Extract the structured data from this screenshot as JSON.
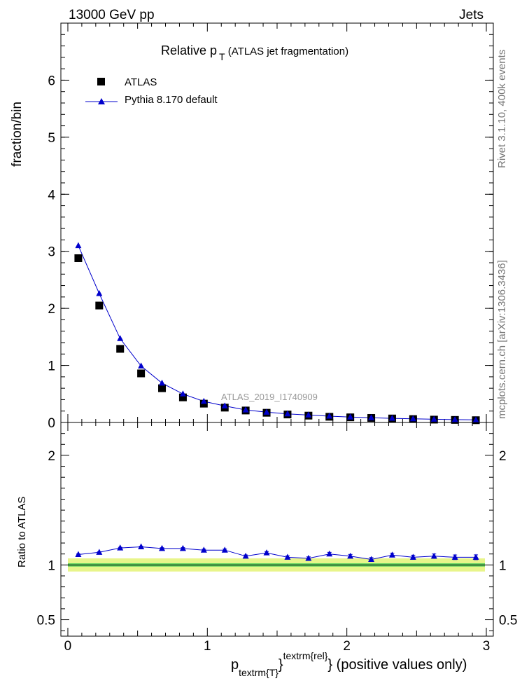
{
  "header": {
    "left": "13000 GeV pp",
    "right": "Jets"
  },
  "side": {
    "top": "Rivet 3.1.10,  400k events",
    "bottom": "mcplots.cern.ch [arXiv:1306.3436]"
  },
  "colors": {
    "data": "#000000",
    "mc": "#0000cc",
    "band_outer": "#e8f58a",
    "band_inner": "#5fd35f"
  },
  "chart_data": [
    {
      "type": "scatter",
      "title_main": "Relative p",
      "title_sub": "T",
      "title_rest": " (ATLAS jet fragmentation)",
      "watermark": "ATLAS_2019_I1740909",
      "ylabel": "fraction/bin",
      "xlim": [
        -0.05,
        3.05
      ],
      "ylim": [
        0,
        7
      ],
      "yticks": [
        0,
        1,
        2,
        3,
        4,
        5,
        6
      ],
      "legend": {
        "placement": "top-left"
      },
      "series": [
        {
          "name": "ATLAS",
          "x": [
            0.075,
            0.225,
            0.375,
            0.525,
            0.675,
            0.825,
            0.975,
            1.125,
            1.275,
            1.425,
            1.575,
            1.725,
            1.875,
            2.025,
            2.175,
            2.325,
            2.475,
            2.625,
            2.775,
            2.925
          ],
          "y": [
            2.88,
            2.05,
            1.29,
            0.86,
            0.6,
            0.44,
            0.33,
            0.26,
            0.21,
            0.17,
            0.14,
            0.12,
            0.1,
            0.09,
            0.08,
            0.07,
            0.06,
            0.05,
            0.045,
            0.04
          ]
        },
        {
          "name": "Pythia 8.170 default",
          "x": [
            0.075,
            0.225,
            0.375,
            0.525,
            0.675,
            0.825,
            0.975,
            1.125,
            1.275,
            1.425,
            1.575,
            1.725,
            1.875,
            2.025,
            2.175,
            2.325,
            2.475,
            2.625,
            2.775,
            2.925
          ],
          "y": [
            3.1,
            2.26,
            1.47,
            0.99,
            0.69,
            0.5,
            0.37,
            0.29,
            0.22,
            0.18,
            0.15,
            0.13,
            0.11,
            0.095,
            0.083,
            0.073,
            0.065,
            0.057,
            0.05,
            0.045
          ]
        }
      ]
    },
    {
      "type": "scatter",
      "ylabel": "Ratio to ATLAS",
      "xlabel_main": "p",
      "xlabel_sub": "textrm{T}",
      "xlabel_brace": "}",
      "xlabel_sup": "textrm{rel}",
      "xlabel_rest": "} (positive values only)",
      "xlim": [
        -0.05,
        3.05
      ],
      "ylim": [
        0.35,
        2.3
      ],
      "xticks": [
        0,
        1,
        2,
        3
      ],
      "yticks": [
        0.5,
        1,
        2
      ],
      "band": {
        "outer": 0.06,
        "inner": 0.015
      },
      "series": [
        {
          "name": "Pythia 8.170 default",
          "x": [
            0.075,
            0.225,
            0.375,
            0.525,
            0.675,
            0.825,
            0.975,
            1.125,
            1.275,
            1.425,
            1.575,
            1.725,
            1.875,
            2.025,
            2.175,
            2.325,
            2.475,
            2.625,
            2.775,
            2.925
          ],
          "y": [
            1.095,
            1.115,
            1.155,
            1.165,
            1.15,
            1.15,
            1.135,
            1.135,
            1.08,
            1.11,
            1.07,
            1.06,
            1.1,
            1.08,
            1.05,
            1.09,
            1.07,
            1.08,
            1.07,
            1.07
          ],
          "err": [
            0.005,
            0.005,
            0.006,
            0.006,
            0.007,
            0.008,
            0.009,
            0.01,
            0.011,
            0.012,
            0.013,
            0.014,
            0.015,
            0.016,
            0.017,
            0.018,
            0.019,
            0.02,
            0.021,
            0.022
          ]
        }
      ]
    }
  ]
}
